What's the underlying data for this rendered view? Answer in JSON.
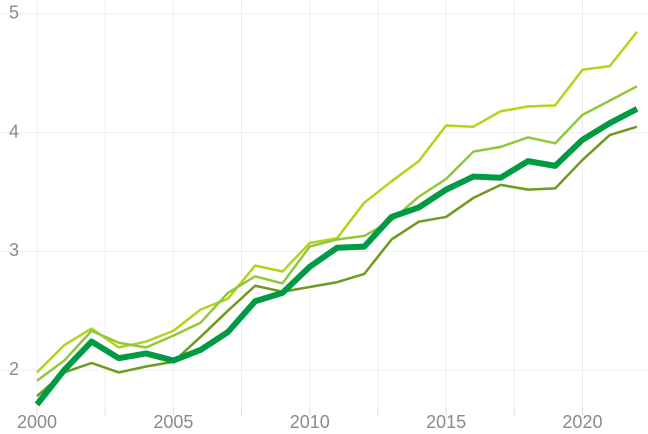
{
  "chart_data": {
    "type": "line",
    "x": [
      2000,
      2001,
      2002,
      2003,
      2004,
      2005,
      2006,
      2007,
      2008,
      2009,
      2010,
      2011,
      2012,
      2013,
      2014,
      2015,
      2016,
      2017,
      2018,
      2019,
      2020,
      2021,
      2022
    ],
    "series": [
      {
        "color": "#b5d31a",
        "width": 2.5,
        "values": [
          1.98,
          2.21,
          2.35,
          2.19,
          2.24,
          2.33,
          2.51,
          2.6,
          2.88,
          2.83,
          3.07,
          3.11,
          3.41,
          3.59,
          3.76,
          4.06,
          4.05,
          4.18,
          4.22,
          4.23,
          4.53,
          4.56,
          4.85
        ]
      },
      {
        "color": "#8fc93a",
        "width": 2.5,
        "values": [
          1.91,
          2.08,
          2.33,
          2.23,
          2.19,
          2.29,
          2.4,
          2.65,
          2.79,
          2.73,
          3.04,
          3.1,
          3.13,
          3.26,
          3.46,
          3.61,
          3.84,
          3.88,
          3.96,
          3.91,
          4.15,
          4.27,
          4.39
        ]
      },
      {
        "color": "#6f9a1e",
        "width": 2.5,
        "values": [
          1.78,
          1.98,
          2.06,
          1.98,
          2.03,
          2.07,
          2.28,
          2.5,
          2.71,
          2.66,
          2.7,
          2.74,
          2.81,
          3.1,
          3.25,
          3.29,
          3.45,
          3.56,
          3.52,
          3.53,
          3.77,
          3.98,
          4.05
        ]
      },
      {
        "color": "#009a44",
        "width": 6,
        "values": [
          1.71,
          2.0,
          2.24,
          2.1,
          2.14,
          2.08,
          2.17,
          2.32,
          2.58,
          2.65,
          2.87,
          3.03,
          3.04,
          3.29,
          3.37,
          3.52,
          3.63,
          3.62,
          3.76,
          3.72,
          3.94,
          4.08,
          4.2
        ]
      }
    ],
    "xlim": [
      2000,
      2022
    ],
    "xticks": [
      2000,
      2005,
      2010,
      2015,
      2020
    ],
    "xminorticks": [
      2002.5,
      2007.5,
      2012.5,
      2017.5
    ],
    "ylim": [
      1.65,
      5.05
    ],
    "yticks": [
      2,
      3,
      4,
      5
    ],
    "grid": true
  }
}
